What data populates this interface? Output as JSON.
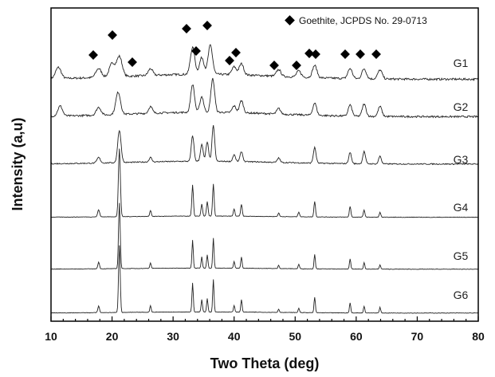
{
  "chart_data": {
    "type": "line",
    "title": "",
    "xlabel": "Two Theta (deg)",
    "ylabel": "Intensity (a,u)",
    "xlim": [
      10,
      80
    ],
    "x_ticks": [
      "10",
      "20",
      "30",
      "40",
      "50",
      "60",
      "70",
      "80"
    ],
    "y_ticks_shown": false,
    "legend": {
      "placement": "top-right",
      "marker": "diamond",
      "text": "Goethite, JCPDS No. 29-0713"
    },
    "reference_peaks": {
      "name": "Goethite, JCPDS No. 29-0713",
      "x": [
        17.8,
        21.2,
        26.3,
        33.2,
        34.7,
        36.6,
        40.0,
        41.2,
        47.3,
        50.6,
        53.2,
        55.4,
        59.0,
        61.3,
        63.9
      ]
    },
    "series": [
      {
        "name": "G1",
        "baseline": 0.2,
        "noise": 0.09,
        "width_scale": 2.0,
        "peaks": [
          [
            11.2,
            0.5
          ],
          [
            17.8,
            0.4
          ],
          [
            20.0,
            0.6
          ],
          [
            21.2,
            0.9
          ],
          [
            26.3,
            0.3
          ],
          [
            33.2,
            1.2
          ],
          [
            34.7,
            0.75
          ],
          [
            36.1,
            1.3
          ],
          [
            40.0,
            0.35
          ],
          [
            41.2,
            0.5
          ],
          [
            47.3,
            0.3
          ],
          [
            50.6,
            0.28
          ],
          [
            53.2,
            0.55
          ],
          [
            59.0,
            0.45
          ],
          [
            61.3,
            0.45
          ],
          [
            63.9,
            0.4
          ]
        ]
      },
      {
        "name": "G2",
        "baseline": 0.2,
        "noise": 0.08,
        "width_scale": 1.7,
        "peaks": [
          [
            11.5,
            0.45
          ],
          [
            17.8,
            0.35
          ],
          [
            21.0,
            1.0
          ],
          [
            26.3,
            0.3
          ],
          [
            33.2,
            1.25
          ],
          [
            34.7,
            0.7
          ],
          [
            36.5,
            1.5
          ],
          [
            40.0,
            0.3
          ],
          [
            41.2,
            0.55
          ],
          [
            47.3,
            0.25
          ],
          [
            53.2,
            0.55
          ],
          [
            59.0,
            0.5
          ],
          [
            61.3,
            0.55
          ],
          [
            63.9,
            0.45
          ]
        ]
      },
      {
        "name": "G3",
        "baseline": 0.15,
        "noise": 0.05,
        "width_scale": 1.2,
        "peaks": [
          [
            17.8,
            0.25
          ],
          [
            21.2,
            1.45
          ],
          [
            26.3,
            0.2
          ],
          [
            33.2,
            1.15
          ],
          [
            34.7,
            0.75
          ],
          [
            35.6,
            0.85
          ],
          [
            36.6,
            1.6
          ],
          [
            40.0,
            0.3
          ],
          [
            41.2,
            0.45
          ],
          [
            47.3,
            0.2
          ],
          [
            53.2,
            0.7
          ],
          [
            59.0,
            0.5
          ],
          [
            61.3,
            0.55
          ],
          [
            63.9,
            0.35
          ]
        ]
      },
      {
        "name": "G4",
        "baseline": 0.08,
        "noise": 0.02,
        "width_scale": 0.7,
        "peaks": [
          [
            17.8,
            0.3
          ],
          [
            21.2,
            2.85
          ],
          [
            26.3,
            0.25
          ],
          [
            33.2,
            1.3
          ],
          [
            34.7,
            0.5
          ],
          [
            35.6,
            0.6
          ],
          [
            36.6,
            1.35
          ],
          [
            40.0,
            0.3
          ],
          [
            41.2,
            0.5
          ],
          [
            47.3,
            0.15
          ],
          [
            50.6,
            0.2
          ],
          [
            53.2,
            0.65
          ],
          [
            59.0,
            0.45
          ],
          [
            61.3,
            0.3
          ],
          [
            63.9,
            0.2
          ]
        ]
      },
      {
        "name": "G5",
        "baseline": 0.08,
        "noise": 0.02,
        "width_scale": 0.6,
        "peaks": [
          [
            17.8,
            0.3
          ],
          [
            21.2,
            2.95
          ],
          [
            26.3,
            0.25
          ],
          [
            33.2,
            1.25
          ],
          [
            34.7,
            0.5
          ],
          [
            35.6,
            0.6
          ],
          [
            36.6,
            1.35
          ],
          [
            40.0,
            0.3
          ],
          [
            41.2,
            0.5
          ],
          [
            47.3,
            0.15
          ],
          [
            50.6,
            0.2
          ],
          [
            53.2,
            0.65
          ],
          [
            59.0,
            0.45
          ],
          [
            61.3,
            0.3
          ],
          [
            63.9,
            0.2
          ]
        ]
      },
      {
        "name": "G6",
        "baseline": 0.08,
        "noise": 0.02,
        "width_scale": 0.6,
        "peaks": [
          [
            17.8,
            0.3
          ],
          [
            21.2,
            3.0
          ],
          [
            26.3,
            0.3
          ],
          [
            33.2,
            1.3
          ],
          [
            34.7,
            0.55
          ],
          [
            35.6,
            0.6
          ],
          [
            36.6,
            1.45
          ],
          [
            40.0,
            0.3
          ],
          [
            41.2,
            0.55
          ],
          [
            47.3,
            0.15
          ],
          [
            50.6,
            0.2
          ],
          [
            53.2,
            0.7
          ],
          [
            59.0,
            0.45
          ],
          [
            61.3,
            0.3
          ],
          [
            63.9,
            0.25
          ]
        ]
      }
    ]
  }
}
